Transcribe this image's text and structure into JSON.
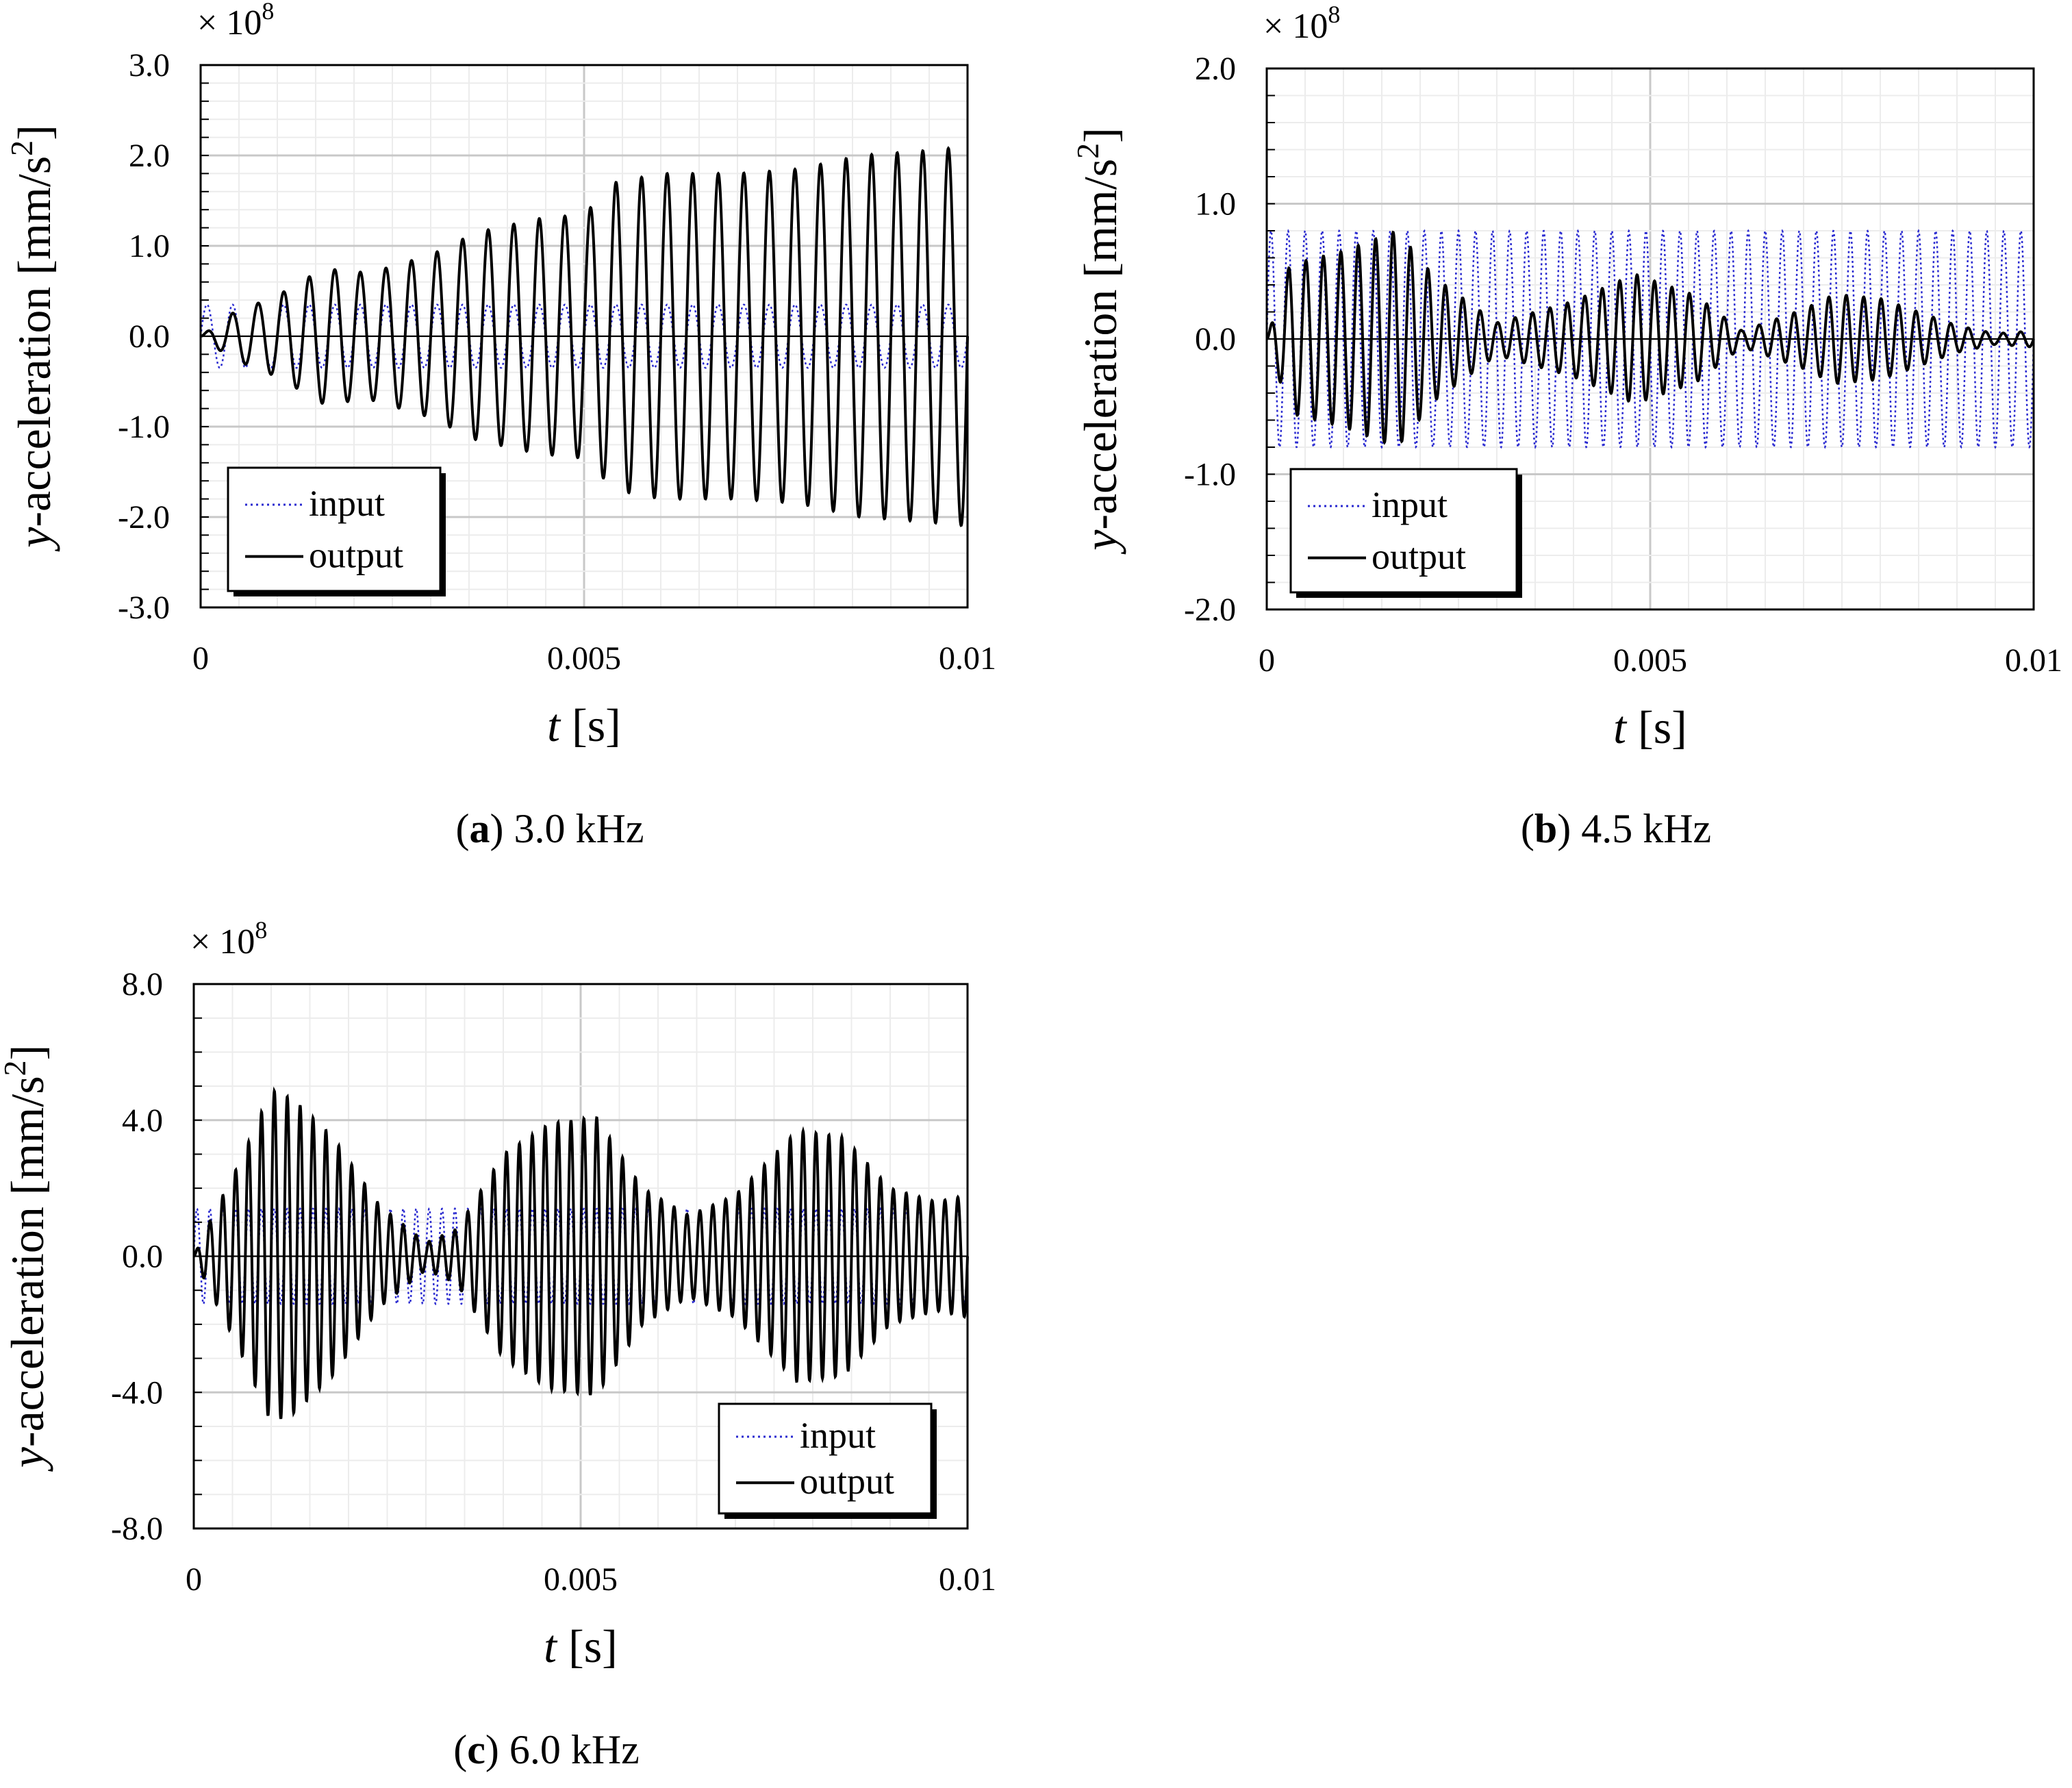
{
  "colors": {
    "input": "#2a2ad0",
    "output": "#000000",
    "grid": "#d9d9d9"
  },
  "chart_data": [
    {
      "type": "line",
      "panel": "a",
      "caption_letter": "a",
      "caption_text": "3.0 kHz",
      "multiplier_base": "× 10",
      "multiplier_exp": "8",
      "xlabel_var": "t",
      "xlabel_unit": "[s]",
      "ylabel_var": "y",
      "ylabel_rest": "-acceleration [mm/s",
      "ylabel_sup": "2",
      "ylabel_close": "]",
      "xlim": [
        0,
        0.01
      ],
      "ylim": [
        -3.0,
        3.0
      ],
      "x_ticks": [
        0,
        0.005,
        0.01
      ],
      "x_tick_labels": [
        "0",
        "0.005",
        "0.01"
      ],
      "y_ticks": [
        3.0,
        2.0,
        1.0,
        0.0,
        -1.0,
        -2.0,
        -3.0
      ],
      "y_tick_labels": [
        "3.0",
        "2.0",
        "1.0",
        "0.0",
        "-1.0",
        "-2.0",
        "-3.0"
      ],
      "legend": {
        "position": "bottom-left",
        "entries": [
          "input",
          "output"
        ]
      },
      "series": [
        {
          "name": "input",
          "style": "dotted",
          "frequency_hz": 3000,
          "amplitude": 0.35
        },
        {
          "name": "output",
          "style": "solid",
          "frequency_hz": 3000,
          "envelope_t": [
            0,
            0.0004,
            0.001,
            0.0016,
            0.0022,
            0.003,
            0.0036,
            0.0044,
            0.005,
            0.0054,
            0.006,
            0.007,
            0.0078,
            0.0086,
            0.0094,
            0.01
          ],
          "envelope_amp": [
            0.0,
            0.25,
            0.45,
            0.75,
            0.7,
            0.9,
            1.15,
            1.3,
            1.35,
            1.7,
            1.8,
            1.8,
            1.85,
            2.0,
            2.05,
            2.1
          ]
        }
      ]
    },
    {
      "type": "line",
      "panel": "b",
      "caption_letter": "b",
      "caption_text": "4.5 kHz",
      "multiplier_base": "× 10",
      "multiplier_exp": "8",
      "xlabel_var": "t",
      "xlabel_unit": "[s]",
      "ylabel_var": "y",
      "ylabel_rest": "-acceleration [mm/s",
      "ylabel_sup": "2",
      "ylabel_close": "]",
      "xlim": [
        0,
        0.01
      ],
      "ylim": [
        -2.0,
        2.0
      ],
      "x_ticks": [
        0,
        0.005,
        0.01
      ],
      "x_tick_labels": [
        "0",
        "0.005",
        "0.01"
      ],
      "y_ticks": [
        2.0,
        1.0,
        0.0,
        -1.0,
        -2.0
      ],
      "y_tick_labels": [
        "2.0",
        "1.0",
        "0.0",
        "-1.0",
        "-2.0"
      ],
      "legend": {
        "position": "bottom-left",
        "entries": [
          "input",
          "output"
        ]
      },
      "series": [
        {
          "name": "input",
          "style": "dotted",
          "frequency_hz": 4500,
          "amplitude": 0.8
        },
        {
          "name": "output",
          "style": "solid",
          "frequency_hz": 4400,
          "envelope_t": [
            0,
            0.0003,
            0.001,
            0.0017,
            0.0022,
            0.003,
            0.004,
            0.0048,
            0.0056,
            0.0062,
            0.007,
            0.0074,
            0.008,
            0.009,
            0.0095,
            0.01
          ],
          "envelope_amp": [
            0.0,
            0.55,
            0.65,
            0.8,
            0.45,
            0.12,
            0.28,
            0.48,
            0.32,
            0.06,
            0.22,
            0.33,
            0.3,
            0.1,
            0.04,
            0.06
          ]
        }
      ]
    },
    {
      "type": "line",
      "panel": "c",
      "caption_letter": "c",
      "caption_text": "6.0 kHz",
      "multiplier_base": "× 10",
      "multiplier_exp": "8",
      "xlabel_var": "t",
      "xlabel_unit": "[s]",
      "ylabel_var": "y",
      "ylabel_rest": "-acceleration [mm/s",
      "ylabel_sup": "2",
      "ylabel_close": "]",
      "xlim": [
        0,
        0.01
      ],
      "ylim": [
        -8.0,
        8.0
      ],
      "x_ticks": [
        0,
        0.005,
        0.01
      ],
      "x_tick_labels": [
        "0",
        "0.005",
        "0.01"
      ],
      "y_ticks": [
        8.0,
        4.0,
        0.0,
        -4.0,
        -8.0
      ],
      "y_tick_labels": [
        "8.0",
        "4.0",
        "0.0",
        "-4.0",
        "-8.0"
      ],
      "legend": {
        "position": "bottom-right",
        "entries": [
          "input",
          "output"
        ]
      },
      "series": [
        {
          "name": "input",
          "style": "dotted",
          "frequency_hz": 6000,
          "amplitude": 1.4
        },
        {
          "name": "output",
          "style": "solid",
          "frequency_hz": 6000,
          "envelope_t": [
            0,
            0.0002,
            0.0006,
            0.001,
            0.0013,
            0.0018,
            0.0024,
            0.003,
            0.0034,
            0.004,
            0.0046,
            0.0052,
            0.0058,
            0.0064,
            0.007,
            0.0078,
            0.0084,
            0.009,
            0.0096,
            0.01
          ],
          "envelope_amp": [
            0.0,
            1.0,
            2.8,
            4.9,
            4.6,
            3.5,
            1.5,
            0.4,
            0.8,
            3.0,
            3.9,
            4.1,
            2.0,
            1.2,
            1.8,
            3.7,
            3.5,
            2.0,
            1.6,
            1.8
          ]
        }
      ]
    }
  ]
}
